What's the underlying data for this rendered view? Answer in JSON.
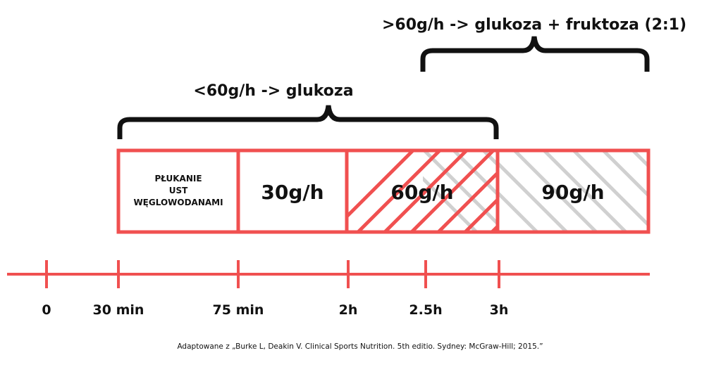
{
  "top_range": {
    "label": ">60g/h -> glukoza + fruktoza (2:1)"
  },
  "lower_range": {
    "label": "<60g/h -> glukoza"
  },
  "boxes": [
    {
      "lines": [
        "PŁUKANIE",
        "UST",
        "WĘGLOWODANAMI"
      ]
    },
    {
      "label": "30g/h"
    },
    {
      "label": "60g/h"
    },
    {
      "label": "90g/h"
    }
  ],
  "timeline": {
    "ticks": [
      "0",
      "30 min",
      "75 min",
      "2h",
      "2.5h",
      "3h"
    ]
  },
  "citation": "Adaptowane z „Burke L, Deakin V. Clinical Sports Nutrition. 5th editio. Sydney: McGraw-Hill; 2015.”",
  "colors": {
    "accent": "#f05050",
    "hatch_gray": "#d0d0d0",
    "text": "#111111"
  }
}
